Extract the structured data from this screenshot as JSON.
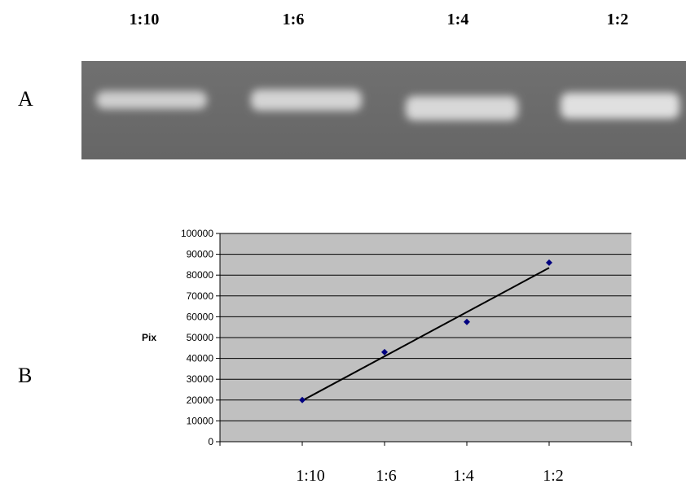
{
  "panel_a": {
    "label": "A",
    "lanes": [
      "1:10",
      "1:6",
      "1:4",
      "1:2"
    ]
  },
  "panel_b": {
    "label": "B"
  },
  "chart_data": {
    "type": "scatter",
    "y_label": "Pix",
    "categories": [
      "1:10",
      "1:6",
      "1:4",
      "1:2"
    ],
    "values": [
      20000,
      43000,
      57500,
      86000
    ],
    "color": "#000080",
    "trendline": "linear",
    "ylim": [
      0,
      100000
    ],
    "yticks": [
      0,
      10000,
      20000,
      30000,
      40000,
      50000,
      60000,
      70000,
      80000,
      90000,
      100000
    ],
    "grid": true
  }
}
